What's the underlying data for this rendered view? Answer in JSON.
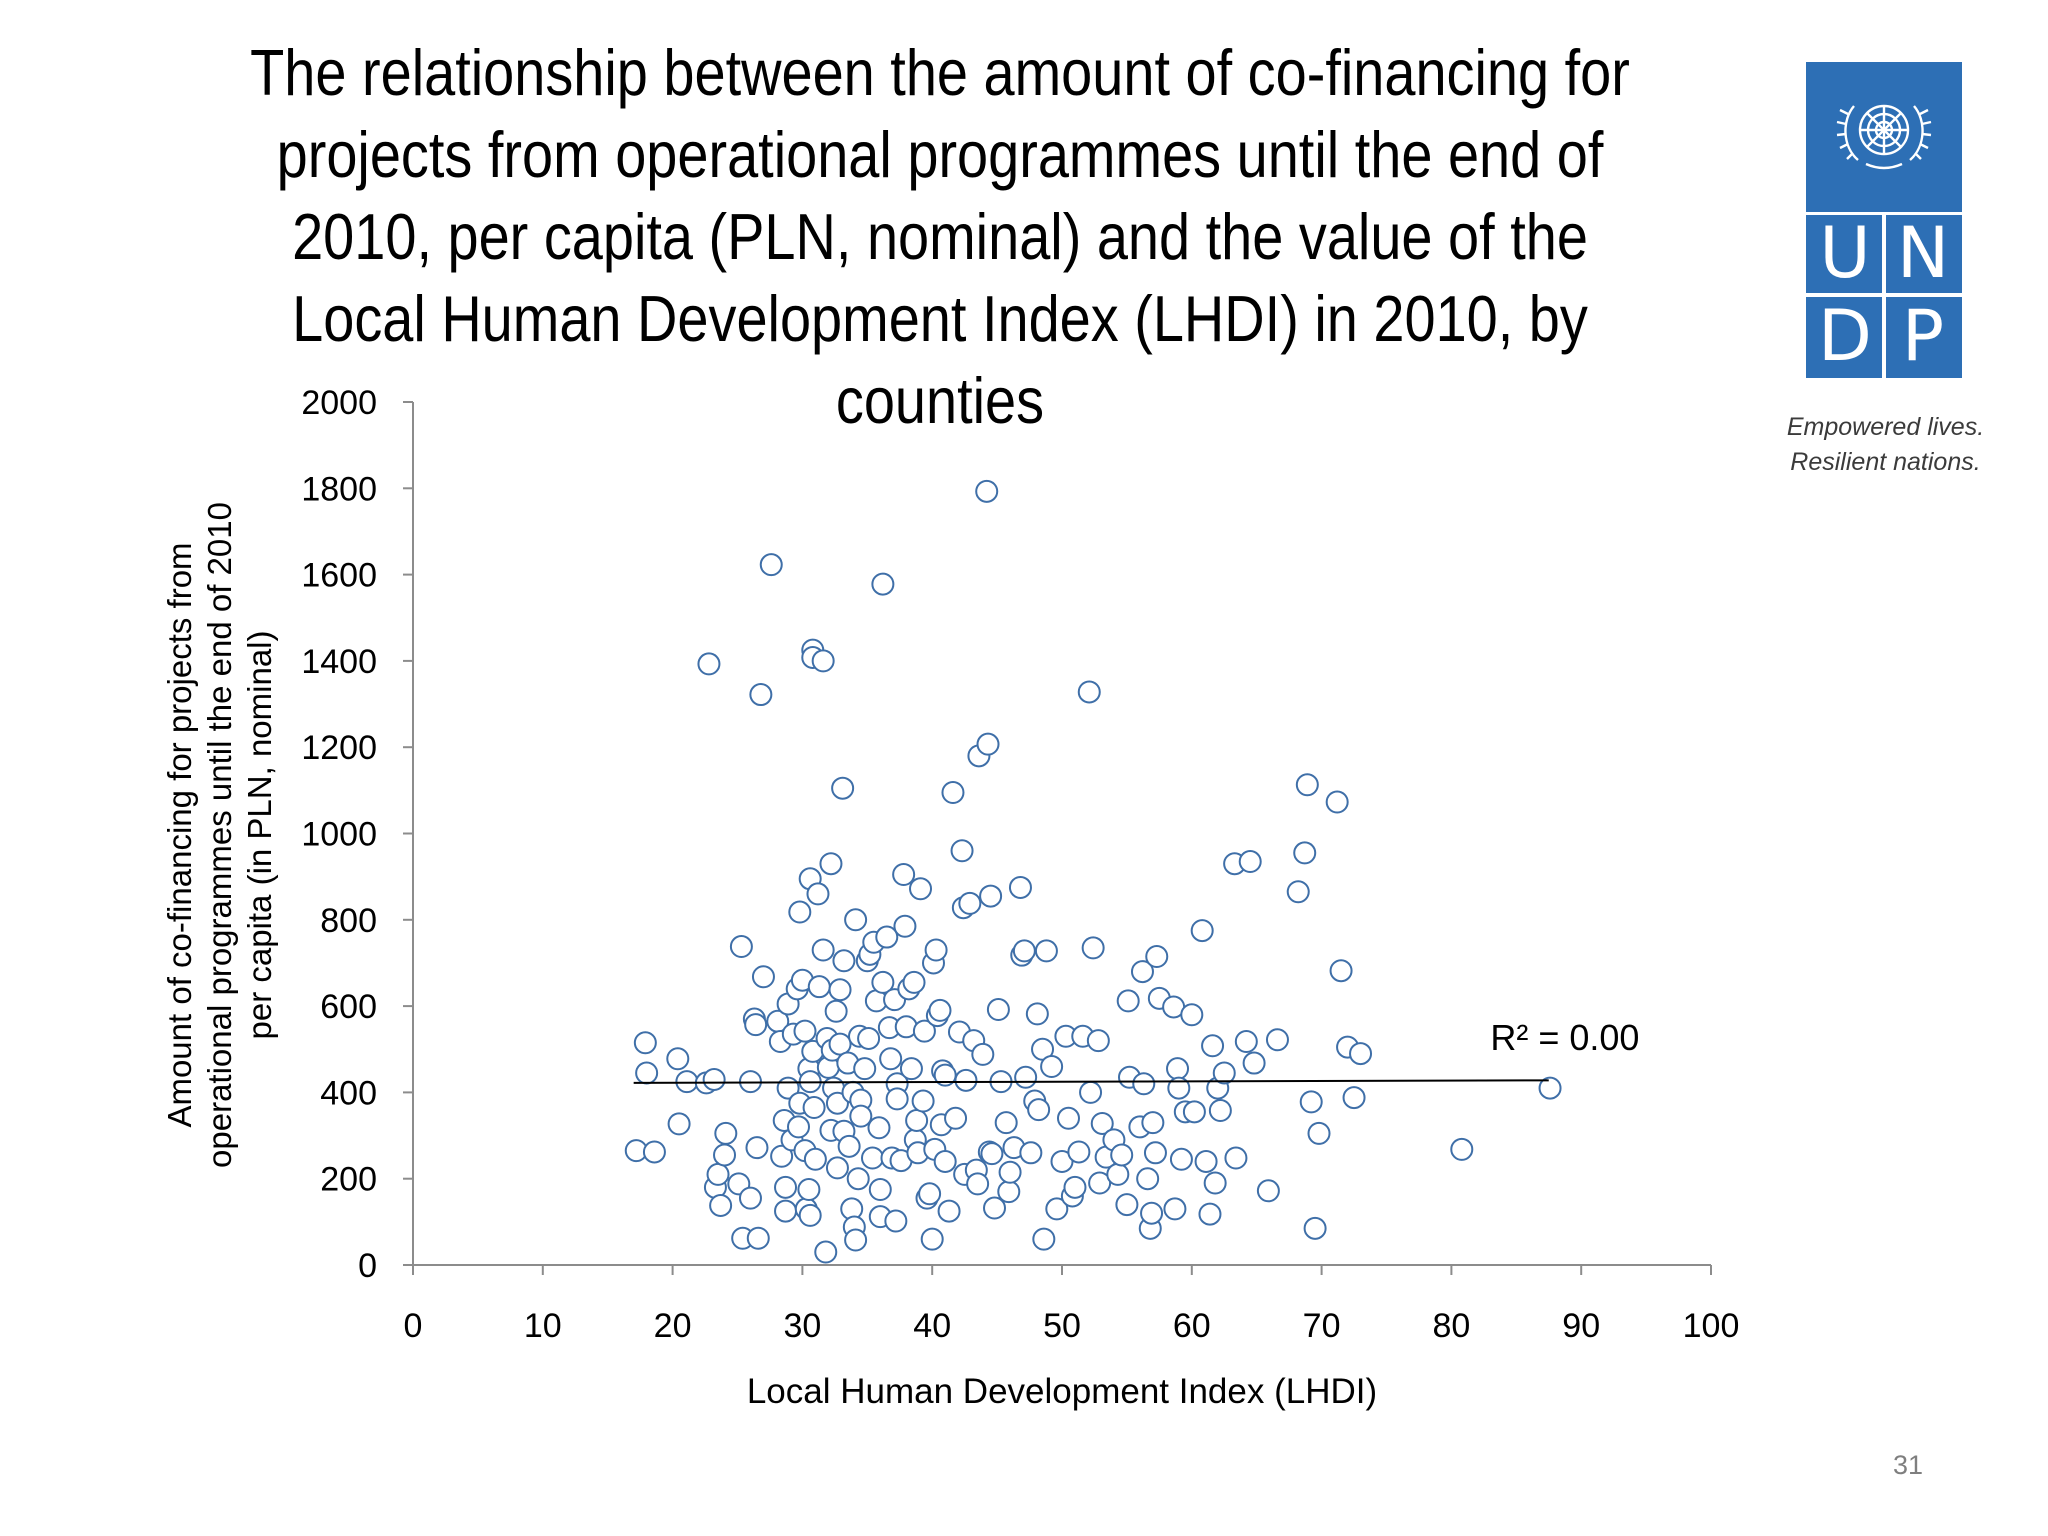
{
  "slide": {
    "title": "The relationship between the amount of co-financing for projects from operational programmes until the end of 2010, per capita (PLN, nominal) and the value of the Local Human Development Index (LHDI) in 2010, by counties",
    "page_number": "31"
  },
  "logo": {
    "letters": [
      "U",
      "N",
      "D",
      "P"
    ],
    "tagline_line1": "Empowered lives.",
    "tagline_line2": "Resilient nations.",
    "color": "#2d6fb5"
  },
  "chart_data": {
    "type": "scatter",
    "xlabel": "Local Human Development Index (LHDI)",
    "ylabel": "Amount of co-financing for projects from operational programmes until the end of 2010 per capita (in PLN, nominal)",
    "xlim": [
      0,
      100
    ],
    "ylim": [
      0,
      2000
    ],
    "x_ticks": [
      0,
      10,
      20,
      30,
      40,
      50,
      60,
      70,
      80,
      90,
      100
    ],
    "y_ticks": [
      0,
      200,
      400,
      600,
      800,
      1000,
      1200,
      1400,
      1600,
      1800,
      2000
    ],
    "marker_color": "#3f6fa8",
    "trendline": {
      "label": "R² = 0.00",
      "x": [
        17,
        87.5
      ],
      "y": [
        422,
        428
      ]
    },
    "points": [
      [
        17.2,
        265
      ],
      [
        18.6,
        262
      ],
      [
        17.9,
        515
      ],
      [
        18.0,
        445
      ],
      [
        20.4,
        478
      ],
      [
        21.1,
        425
      ],
      [
        20.5,
        327
      ],
      [
        22.6,
        422
      ],
      [
        23.2,
        430
      ],
      [
        22.8,
        1393
      ],
      [
        23.3,
        180
      ],
      [
        23.5,
        210
      ],
      [
        23.7,
        138
      ],
      [
        24.0,
        255
      ],
      [
        24.1,
        305
      ],
      [
        25.1,
        188
      ],
      [
        25.3,
        738
      ],
      [
        25.4,
        62
      ],
      [
        26.0,
        155
      ],
      [
        26.0,
        425
      ],
      [
        26.3,
        570
      ],
      [
        26.4,
        557
      ],
      [
        26.6,
        62
      ],
      [
        26.5,
        272
      ],
      [
        26.8,
        1322
      ],
      [
        27.0,
        668
      ],
      [
        27.6,
        1623
      ],
      [
        28.1,
        565
      ],
      [
        28.3,
        518
      ],
      [
        28.4,
        252
      ],
      [
        28.6,
        335
      ],
      [
        28.7,
        180
      ],
      [
        28.7,
        125
      ],
      [
        28.9,
        410
      ],
      [
        28.9,
        605
      ],
      [
        29.2,
        290
      ],
      [
        29.3,
        535
      ],
      [
        29.6,
        640
      ],
      [
        29.7,
        320
      ],
      [
        29.8,
        818
      ],
      [
        29.8,
        375
      ],
      [
        30.0,
        660
      ],
      [
        30.2,
        542
      ],
      [
        30.2,
        265
      ],
      [
        30.3,
        130
      ],
      [
        30.5,
        455
      ],
      [
        30.5,
        175
      ],
      [
        30.6,
        895
      ],
      [
        30.6,
        425
      ],
      [
        30.6,
        115
      ],
      [
        30.8,
        1425
      ],
      [
        30.8,
        1408
      ],
      [
        30.8,
        495
      ],
      [
        30.9,
        365
      ],
      [
        31.0,
        245
      ],
      [
        31.2,
        860
      ],
      [
        31.3,
        645
      ],
      [
        31.6,
        1400
      ],
      [
        31.6,
        730
      ],
      [
        31.8,
        30
      ],
      [
        31.9,
        525
      ],
      [
        32.0,
        458
      ],
      [
        32.2,
        930
      ],
      [
        32.2,
        312
      ],
      [
        32.3,
        498
      ],
      [
        32.4,
        410
      ],
      [
        32.6,
        588
      ],
      [
        32.7,
        375
      ],
      [
        32.7,
        225
      ],
      [
        32.9,
        638
      ],
      [
        32.9,
        512
      ],
      [
        33.1,
        1105
      ],
      [
        33.2,
        705
      ],
      [
        33.2,
        310
      ],
      [
        33.5,
        468
      ],
      [
        33.6,
        275
      ],
      [
        33.8,
        130
      ],
      [
        33.9,
        400
      ],
      [
        34.0,
        88
      ],
      [
        34.1,
        58
      ],
      [
        34.1,
        800
      ],
      [
        34.3,
        200
      ],
      [
        34.4,
        530
      ],
      [
        34.5,
        382
      ],
      [
        34.5,
        345
      ],
      [
        34.8,
        455
      ],
      [
        35.0,
        705
      ],
      [
        35.1,
        525
      ],
      [
        35.2,
        720
      ],
      [
        35.4,
        248
      ],
      [
        35.5,
        748
      ],
      [
        35.7,
        612
      ],
      [
        35.9,
        318
      ],
      [
        36.0,
        175
      ],
      [
        36.0,
        112
      ],
      [
        36.2,
        1578
      ],
      [
        36.2,
        655
      ],
      [
        36.5,
        760
      ],
      [
        36.7,
        550
      ],
      [
        36.8,
        478
      ],
      [
        36.9,
        248
      ],
      [
        37.1,
        615
      ],
      [
        37.2,
        102
      ],
      [
        37.3,
        420
      ],
      [
        37.3,
        385
      ],
      [
        37.6,
        242
      ],
      [
        37.8,
        905
      ],
      [
        37.9,
        785
      ],
      [
        38.0,
        552
      ],
      [
        38.2,
        640
      ],
      [
        38.4,
        455
      ],
      [
        38.6,
        655
      ],
      [
        38.7,
        290
      ],
      [
        38.8,
        335
      ],
      [
        38.9,
        260
      ],
      [
        39.1,
        872
      ],
      [
        39.3,
        380
      ],
      [
        39.4,
        542
      ],
      [
        39.6,
        155
      ],
      [
        39.8,
        165
      ],
      [
        40.0,
        60
      ],
      [
        40.1,
        700
      ],
      [
        40.2,
        268
      ],
      [
        40.3,
        730
      ],
      [
        40.4,
        578
      ],
      [
        40.6,
        590
      ],
      [
        40.7,
        325
      ],
      [
        40.8,
        450
      ],
      [
        41.0,
        440
      ],
      [
        41.0,
        240
      ],
      [
        41.3,
        125
      ],
      [
        41.6,
        1095
      ],
      [
        41.8,
        340
      ],
      [
        42.1,
        540
      ],
      [
        42.3,
        960
      ],
      [
        42.4,
        828
      ],
      [
        42.5,
        210
      ],
      [
        42.6,
        428
      ],
      [
        42.9,
        838
      ],
      [
        43.2,
        520
      ],
      [
        43.4,
        220
      ],
      [
        43.5,
        188
      ],
      [
        43.6,
        1180
      ],
      [
        43.9,
        488
      ],
      [
        44.2,
        1793
      ],
      [
        44.3,
        1207
      ],
      [
        44.4,
        262
      ],
      [
        44.5,
        855
      ],
      [
        44.6,
        258
      ],
      [
        44.8,
        132
      ],
      [
        45.1,
        592
      ],
      [
        45.3,
        425
      ],
      [
        45.7,
        330
      ],
      [
        45.9,
        170
      ],
      [
        46.0,
        215
      ],
      [
        46.3,
        272
      ],
      [
        46.8,
        875
      ],
      [
        46.9,
        718
      ],
      [
        47.1,
        728
      ],
      [
        47.2,
        435
      ],
      [
        47.6,
        260
      ],
      [
        47.9,
        380
      ],
      [
        48.1,
        582
      ],
      [
        48.2,
        360
      ],
      [
        48.5,
        500
      ],
      [
        48.6,
        60
      ],
      [
        48.8,
        728
      ],
      [
        49.2,
        460
      ],
      [
        49.6,
        130
      ],
      [
        50.0,
        240
      ],
      [
        50.3,
        530
      ],
      [
        50.5,
        340
      ],
      [
        50.8,
        160
      ],
      [
        51.0,
        180
      ],
      [
        51.3,
        262
      ],
      [
        51.6,
        530
      ],
      [
        52.1,
        1328
      ],
      [
        52.2,
        400
      ],
      [
        52.4,
        735
      ],
      [
        52.8,
        520
      ],
      [
        52.9,
        190
      ],
      [
        53.1,
        328
      ],
      [
        53.4,
        250
      ],
      [
        54.0,
        290
      ],
      [
        54.3,
        210
      ],
      [
        54.6,
        255
      ],
      [
        55.0,
        140
      ],
      [
        55.1,
        612
      ],
      [
        55.2,
        435
      ],
      [
        56.0,
        320
      ],
      [
        56.2,
        680
      ],
      [
        56.3,
        420
      ],
      [
        56.6,
        200
      ],
      [
        56.8,
        85
      ],
      [
        56.9,
        120
      ],
      [
        57.0,
        330
      ],
      [
        57.2,
        260
      ],
      [
        57.3,
        715
      ],
      [
        57.5,
        618
      ],
      [
        58.6,
        598
      ],
      [
        58.7,
        130
      ],
      [
        58.9,
        455
      ],
      [
        59.0,
        410
      ],
      [
        59.2,
        245
      ],
      [
        59.5,
        355
      ],
      [
        60.0,
        580
      ],
      [
        60.2,
        355
      ],
      [
        60.8,
        775
      ],
      [
        61.1,
        240
      ],
      [
        61.4,
        118
      ],
      [
        61.6,
        508
      ],
      [
        61.8,
        190
      ],
      [
        62.0,
        410
      ],
      [
        62.2,
        358
      ],
      [
        62.5,
        445
      ],
      [
        63.3,
        930
      ],
      [
        63.4,
        248
      ],
      [
        64.2,
        518
      ],
      [
        64.5,
        935
      ],
      [
        64.8,
        468
      ],
      [
        65.9,
        172
      ],
      [
        66.6,
        522
      ],
      [
        68.2,
        865
      ],
      [
        68.7,
        955
      ],
      [
        68.9,
        1113
      ],
      [
        69.2,
        378
      ],
      [
        69.5,
        85
      ],
      [
        69.8,
        305
      ],
      [
        71.2,
        1073
      ],
      [
        71.5,
        682
      ],
      [
        72.0,
        505
      ],
      [
        72.5,
        388
      ],
      [
        73.0,
        490
      ],
      [
        80.8,
        268
      ],
      [
        87.6,
        410
      ]
    ]
  }
}
